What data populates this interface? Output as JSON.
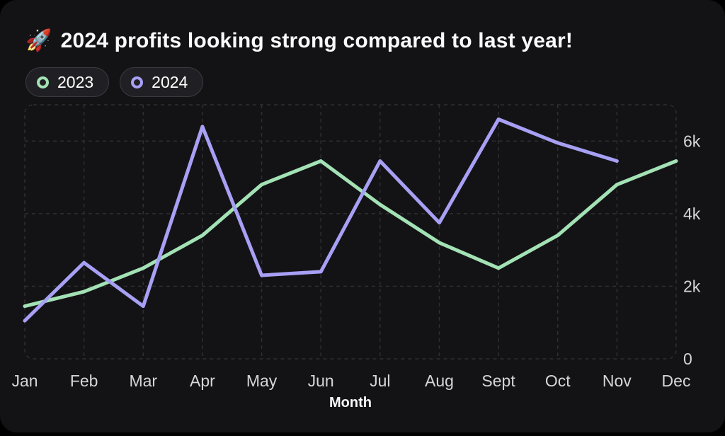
{
  "header": {
    "emoji": "🚀",
    "title": "2024 profits looking strong compared to last year!"
  },
  "legend": {
    "items": [
      {
        "label": "2023",
        "color": "#a3e2b5"
      },
      {
        "label": "2024",
        "color": "#a7a0f4"
      }
    ]
  },
  "colors": {
    "card_background": "#131316",
    "outer_background": "#000000",
    "grid": "#2e2e33",
    "tick_label": "#d6d6da",
    "axis_title": "#fafafa"
  },
  "chart_data": {
    "type": "line",
    "title": "🚀 2024 profits looking strong compared to last year!",
    "xlabel": "Month",
    "ylabel": "",
    "x": [
      "Jan",
      "Feb",
      "Mar",
      "Apr",
      "May",
      "Jun",
      "Jul",
      "Aug",
      "Sept",
      "Oct",
      "Nov",
      "Dec"
    ],
    "series": [
      {
        "name": "2023",
        "color": "#a3e2b5",
        "values": [
          1450,
          1850,
          2500,
          3400,
          4800,
          5450,
          4250,
          3200,
          2500,
          3400,
          4800,
          5450
        ]
      },
      {
        "name": "2024",
        "color": "#a7a0f4",
        "values": [
          1050,
          2650,
          1450,
          6400,
          2300,
          2400,
          5450,
          3750,
          6600,
          5950,
          5450,
          null
        ]
      }
    ],
    "ylim": [
      0,
      7000
    ],
    "yticks": [
      0,
      2000,
      4000,
      6000
    ],
    "ytick_labels": [
      "0",
      "2k",
      "4k",
      "6k"
    ],
    "grid": "dashed rounded border, vertical line per month, horizontal line per 2k",
    "legend_position": "top-left",
    "y_axis_side": "right"
  }
}
